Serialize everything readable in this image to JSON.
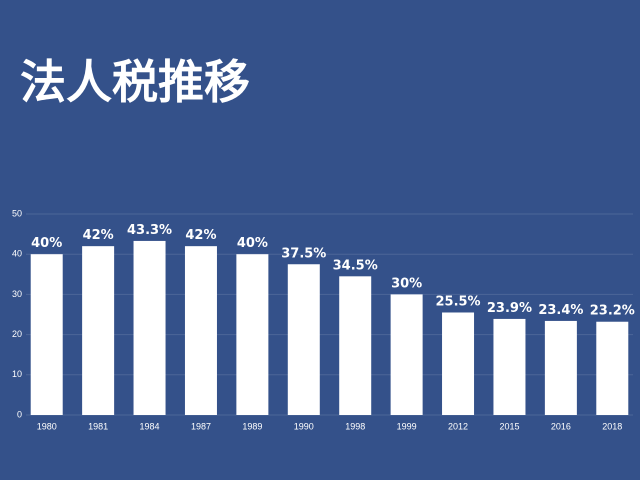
{
  "chart_data": {
    "type": "bar",
    "title": "法人税推移",
    "categories": [
      "1980",
      "1981",
      "1984",
      "1987",
      "1989",
      "1990",
      "1998",
      "1999",
      "2012",
      "2015",
      "2016",
      "2018"
    ],
    "values": [
      40,
      42,
      43.3,
      42,
      40,
      37.5,
      34.5,
      30,
      25.5,
      23.9,
      23.4,
      23.2
    ],
    "value_labels": [
      "40%",
      "42%",
      "43.3%",
      "42%",
      "40%",
      "37.5%",
      "34.5%",
      "30%",
      "25.5%",
      "23.9%",
      "23.4%",
      "23.2%"
    ],
    "color": "#ffffff",
    "ylim": [
      0,
      50
    ],
    "yticks": [
      0,
      10,
      20,
      30,
      40,
      50
    ],
    "grid": true
  }
}
